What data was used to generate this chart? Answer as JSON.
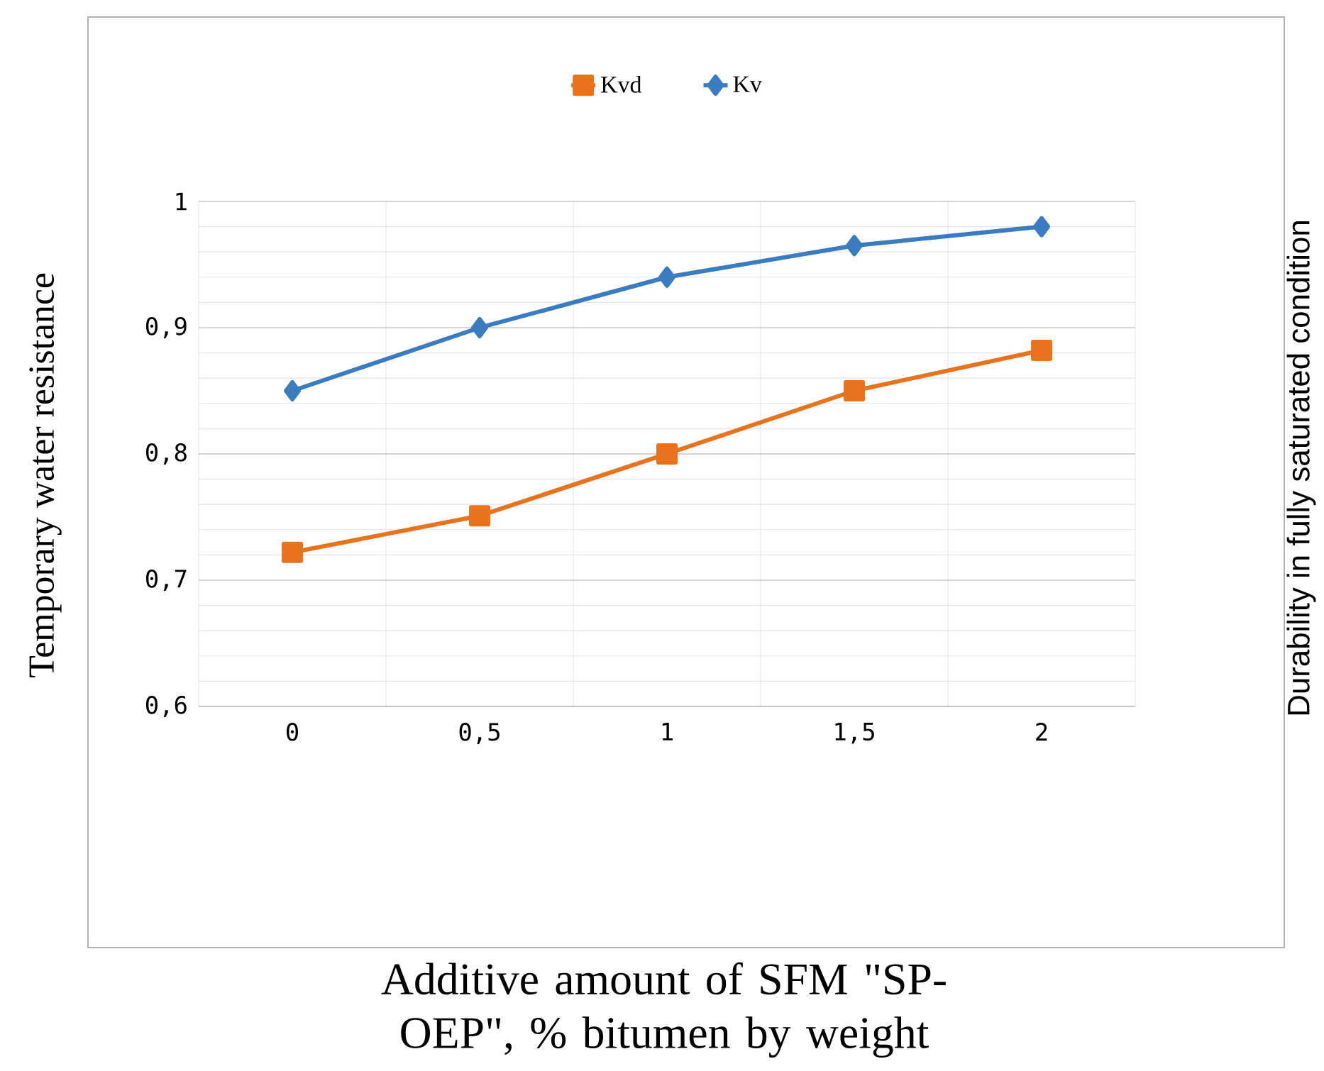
{
  "chart_data": {
    "type": "line",
    "xlabel": "Additive amount of SFM \"SP-OEP\", % bitumen by weight",
    "ylabel": "Temporary water resistance",
    "y2label": "Durability in fully saturated condition",
    "categories": [
      "0",
      "0,5",
      "1",
      "1,5",
      "2"
    ],
    "series": [
      {
        "name": "Kvd",
        "color": "#e8731e",
        "marker": "square",
        "values": [
          0.722,
          0.751,
          0.8,
          0.85,
          0.882
        ]
      },
      {
        "name": "Kv",
        "color": "#3b7bbf",
        "marker": "diamond",
        "values": [
          0.85,
          0.9,
          0.94,
          0.965,
          0.98
        ]
      }
    ],
    "ylim": [
      0.6,
      1
    ],
    "yticks": [
      {
        "value": 0.6,
        "label": "0,6"
      },
      {
        "value": 0.7,
        "label": "0,7"
      },
      {
        "value": 0.8,
        "label": "0,8"
      },
      {
        "value": 0.9,
        "label": "0,9"
      },
      {
        "value": 1,
        "label": "1"
      }
    ],
    "grid": true,
    "legend": "top",
    "line_style": "solid"
  }
}
